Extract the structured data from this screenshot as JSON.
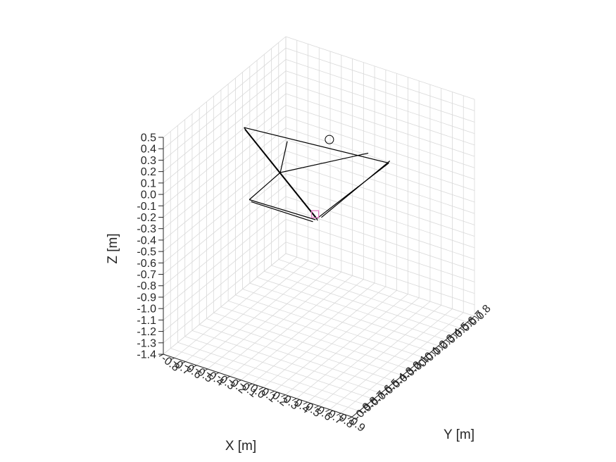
{
  "chart_data": {
    "type": "line3d",
    "title": "",
    "xlabel": "X [m]",
    "ylabel": "Y [m]",
    "zlabel": "Z [m]",
    "xlim": [
      -0.8,
      0.9
    ],
    "ylim": [
      -0.9,
      0.8
    ],
    "zlim": [
      -1.4,
      0.5
    ],
    "grid": true,
    "x_ticks": [
      "-0.8",
      "-0.7",
      "-0.6",
      "-0.5",
      "-0.4",
      "-0.3",
      "-0.2",
      "-0.1",
      "0.0",
      "0.1",
      "0.2",
      "0.3",
      "0.4",
      "0.5",
      "0.6",
      "0.7",
      "0.8",
      "0.9"
    ],
    "y_ticks": [
      "-0.9",
      "-0.8",
      "-0.7",
      "-0.6",
      "-0.5",
      "-0.4",
      "-0.3",
      "-0.2",
      "-0.1",
      "0.0",
      "0.1",
      "0.2",
      "0.3",
      "0.4",
      "0.5",
      "0.6",
      "0.7",
      "0.8"
    ],
    "z_ticks": [
      "-1.4",
      "-1.3",
      "-1.2",
      "-1.1",
      "-1.0",
      "-0.9",
      "-0.8",
      "-0.7",
      "-0.6",
      "-0.5",
      "-0.4",
      "-0.3",
      "-0.2",
      "-0.1",
      "0.0",
      "0.1",
      "0.2",
      "0.3",
      "0.4",
      "0.5"
    ],
    "colors": {
      "structure": "#000000",
      "marker_square": "#e377c2",
      "grid": "#d9d9d9",
      "axis": "#262626"
    },
    "segments": [
      {
        "from": [
          -0.43,
          -0.35,
          0.42
        ],
        "to": [
          0.0,
          0.0,
          -0.42
        ]
      },
      {
        "from": [
          -0.41,
          -0.37,
          0.42
        ],
        "to": [
          0.02,
          -0.02,
          -0.42
        ]
      },
      {
        "from": [
          -0.43,
          -0.35,
          0.42
        ],
        "to": [
          0.42,
          0.35,
          0.02
        ]
      },
      {
        "from": [
          0.42,
          0.35,
          0.02
        ],
        "to": [
          0.0,
          0.0,
          -0.42
        ]
      },
      {
        "from": [
          0.41,
          0.38,
          0.02
        ],
        "to": [
          0.02,
          0.03,
          -0.42
        ]
      },
      {
        "from": [
          -0.17,
          -0.15,
          0.28
        ],
        "to": [
          -0.22,
          -0.17,
          0.0
        ]
      },
      {
        "from": [
          0.3,
          0.25,
          0.12
        ],
        "to": [
          -0.22,
          -0.17,
          0.0
        ]
      },
      {
        "from": [
          -0.35,
          -0.4,
          -0.16
        ],
        "to": [
          0.0,
          -0.02,
          -0.42
        ]
      },
      {
        "from": [
          -0.35,
          -0.4,
          -0.16
        ],
        "to": [
          -0.22,
          -0.17,
          0.0
        ]
      },
      {
        "from": [
          -0.34,
          -0.39,
          -0.18
        ],
        "to": [
          -0.01,
          -0.04,
          -0.43
        ]
      }
    ],
    "markers": [
      {
        "shape": "circle",
        "point": [
          0.06,
          0.08,
          0.25
        ]
      },
      {
        "shape": "square",
        "point": [
          -0.01,
          -0.01,
          -0.38
        ]
      }
    ]
  }
}
